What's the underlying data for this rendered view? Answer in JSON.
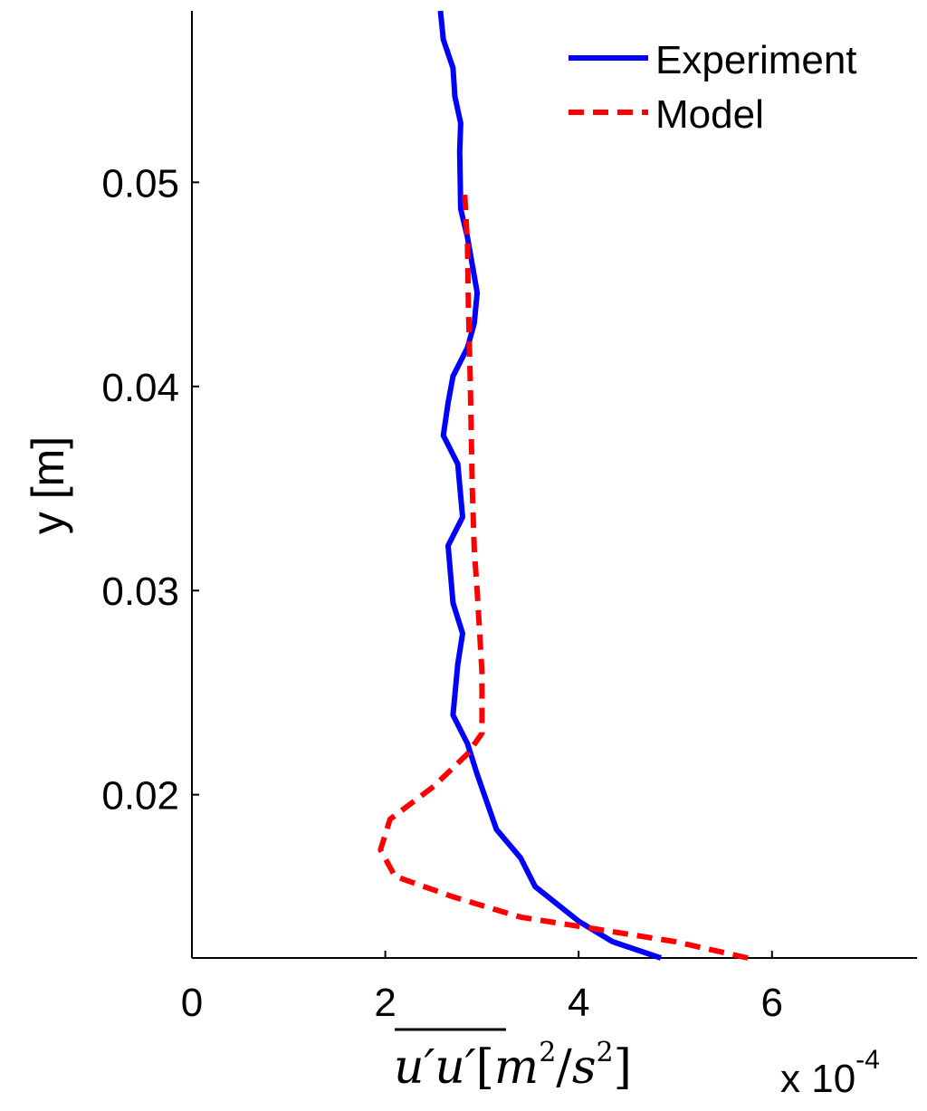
{
  "chart_data": {
    "type": "line",
    "xlabel": {
      "var": "u′u′",
      "unit_open": "[",
      "unit_m": "m",
      "unit_m_exp": "2",
      "unit_slash": "/",
      "unit_s": "s",
      "unit_s_exp": "2",
      "unit_close": "]"
    },
    "ylabel": "y [m]",
    "x_multiplier": {
      "base": "x 10",
      "exponent": "-4"
    },
    "xlim": [
      0,
      7.5
    ],
    "ylim": [
      0.012,
      0.0584
    ],
    "xticks": [
      0,
      2,
      4,
      6
    ],
    "xtick_labels": [
      "0",
      "2",
      "4",
      "6"
    ],
    "yticks": [
      0.02,
      0.03,
      0.04,
      0.05
    ],
    "ytick_labels": [
      "0.02",
      "0.03",
      "0.04",
      "0.05"
    ],
    "grid": false,
    "legend_position": "top-right",
    "series": [
      {
        "name": "Experiment",
        "color": "#0000ff",
        "style": "solid",
        "points": [
          [
            4.85,
            0.012
          ],
          [
            4.35,
            0.0128
          ],
          [
            4.0,
            0.0138
          ],
          [
            3.55,
            0.0155
          ],
          [
            3.4,
            0.0169
          ],
          [
            3.15,
            0.0183
          ],
          [
            2.95,
            0.021
          ],
          [
            2.85,
            0.0225
          ],
          [
            2.7,
            0.0239
          ],
          [
            2.75,
            0.0264
          ],
          [
            2.8,
            0.0279
          ],
          [
            2.7,
            0.0294
          ],
          [
            2.65,
            0.0322
          ],
          [
            2.8,
            0.0336
          ],
          [
            2.75,
            0.0362
          ],
          [
            2.6,
            0.0376
          ],
          [
            2.65,
            0.0392
          ],
          [
            2.7,
            0.0405
          ],
          [
            2.85,
            0.0419
          ],
          [
            2.92,
            0.0431
          ],
          [
            2.95,
            0.0446
          ],
          [
            2.85,
            0.0473
          ],
          [
            2.78,
            0.0487
          ],
          [
            2.77,
            0.0515
          ],
          [
            2.78,
            0.0529
          ],
          [
            2.72,
            0.0542
          ],
          [
            2.7,
            0.0556
          ],
          [
            2.6,
            0.057
          ],
          [
            2.57,
            0.0584
          ]
        ]
      },
      {
        "name": "Model",
        "color": "#ff0000",
        "style": "dashed",
        "points": [
          [
            5.75,
            0.012
          ],
          [
            5.0,
            0.0128
          ],
          [
            4.2,
            0.0134
          ],
          [
            3.4,
            0.014
          ],
          [
            2.7,
            0.015
          ],
          [
            2.1,
            0.016
          ],
          [
            1.95,
            0.0173
          ],
          [
            2.05,
            0.0188
          ],
          [
            2.5,
            0.0204
          ],
          [
            2.85,
            0.022
          ],
          [
            3.0,
            0.023
          ],
          [
            3.0,
            0.026
          ],
          [
            2.95,
            0.03
          ],
          [
            2.92,
            0.032
          ],
          [
            2.9,
            0.035
          ],
          [
            2.88,
            0.04
          ],
          [
            2.86,
            0.044
          ],
          [
            2.85,
            0.047
          ],
          [
            2.82,
            0.0495
          ]
        ]
      }
    ]
  }
}
